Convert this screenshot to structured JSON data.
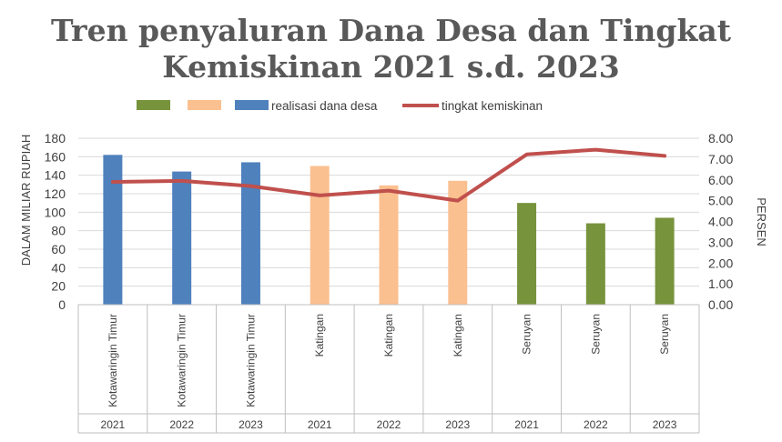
{
  "chart_data": {
    "type": "bar",
    "title": "Tren penyaluran Dana Desa dan Tingkat Kemiskinan 2021 s.d. 2023",
    "title_lines": [
      "Tren penyaluran Dana Desa dan Tingkat",
      "Kemiskinan 2021 s.d. 2023"
    ],
    "ylabel": "DALAM MILIAR RUPIAH",
    "y2label": "PERSEN",
    "ylim": [
      0,
      180
    ],
    "y2lim": [
      0,
      8
    ],
    "yticks": [
      "0",
      "20",
      "40",
      "60",
      "80",
      "100",
      "120",
      "140",
      "160",
      "180"
    ],
    "y2ticks": [
      "0.00",
      "1.00",
      "2.00",
      "3.00",
      "4.00",
      "5.00",
      "6.00",
      "7.00",
      "8.00"
    ],
    "grid": true,
    "legend_position": "top",
    "categories": [
      {
        "region": "Kotawaringin Timur",
        "year": "2021"
      },
      {
        "region": "Kotawaringin Timur",
        "year": "2022"
      },
      {
        "region": "Kotawaringin Timur",
        "year": "2023"
      },
      {
        "region": "Katingan",
        "year": "2021"
      },
      {
        "region": "Katingan",
        "year": "2022"
      },
      {
        "region": "Katingan",
        "year": "2023"
      },
      {
        "region": "Seruyan",
        "year": "2021"
      },
      {
        "region": "Seruyan",
        "year": "2022"
      },
      {
        "region": "Seruyan",
        "year": "2023"
      }
    ],
    "bar_values": [
      162,
      144,
      154,
      150,
      129,
      134,
      110,
      88,
      94
    ],
    "bar_colors": [
      "#4f81bd",
      "#4f81bd",
      "#4f81bd",
      "#fac090",
      "#fac090",
      "#fac090",
      "#77933c",
      "#77933c",
      "#77933c"
    ],
    "line_series": {
      "name": "tingkat kemiskinan",
      "color": "#c0504d",
      "values": [
        5.9,
        5.95,
        5.7,
        5.25,
        5.48,
        5.0,
        7.22,
        7.45,
        7.15
      ]
    },
    "legend": [
      {
        "label": "",
        "kind": "box",
        "color": "#77933c"
      },
      {
        "label": "",
        "kind": "box",
        "color": "#fac090"
      },
      {
        "label": "realisasi dana desa",
        "kind": "box",
        "color": "#4f81bd"
      },
      {
        "label": "tingkat kemiskinan",
        "kind": "line",
        "color": "#c0504d"
      }
    ]
  }
}
